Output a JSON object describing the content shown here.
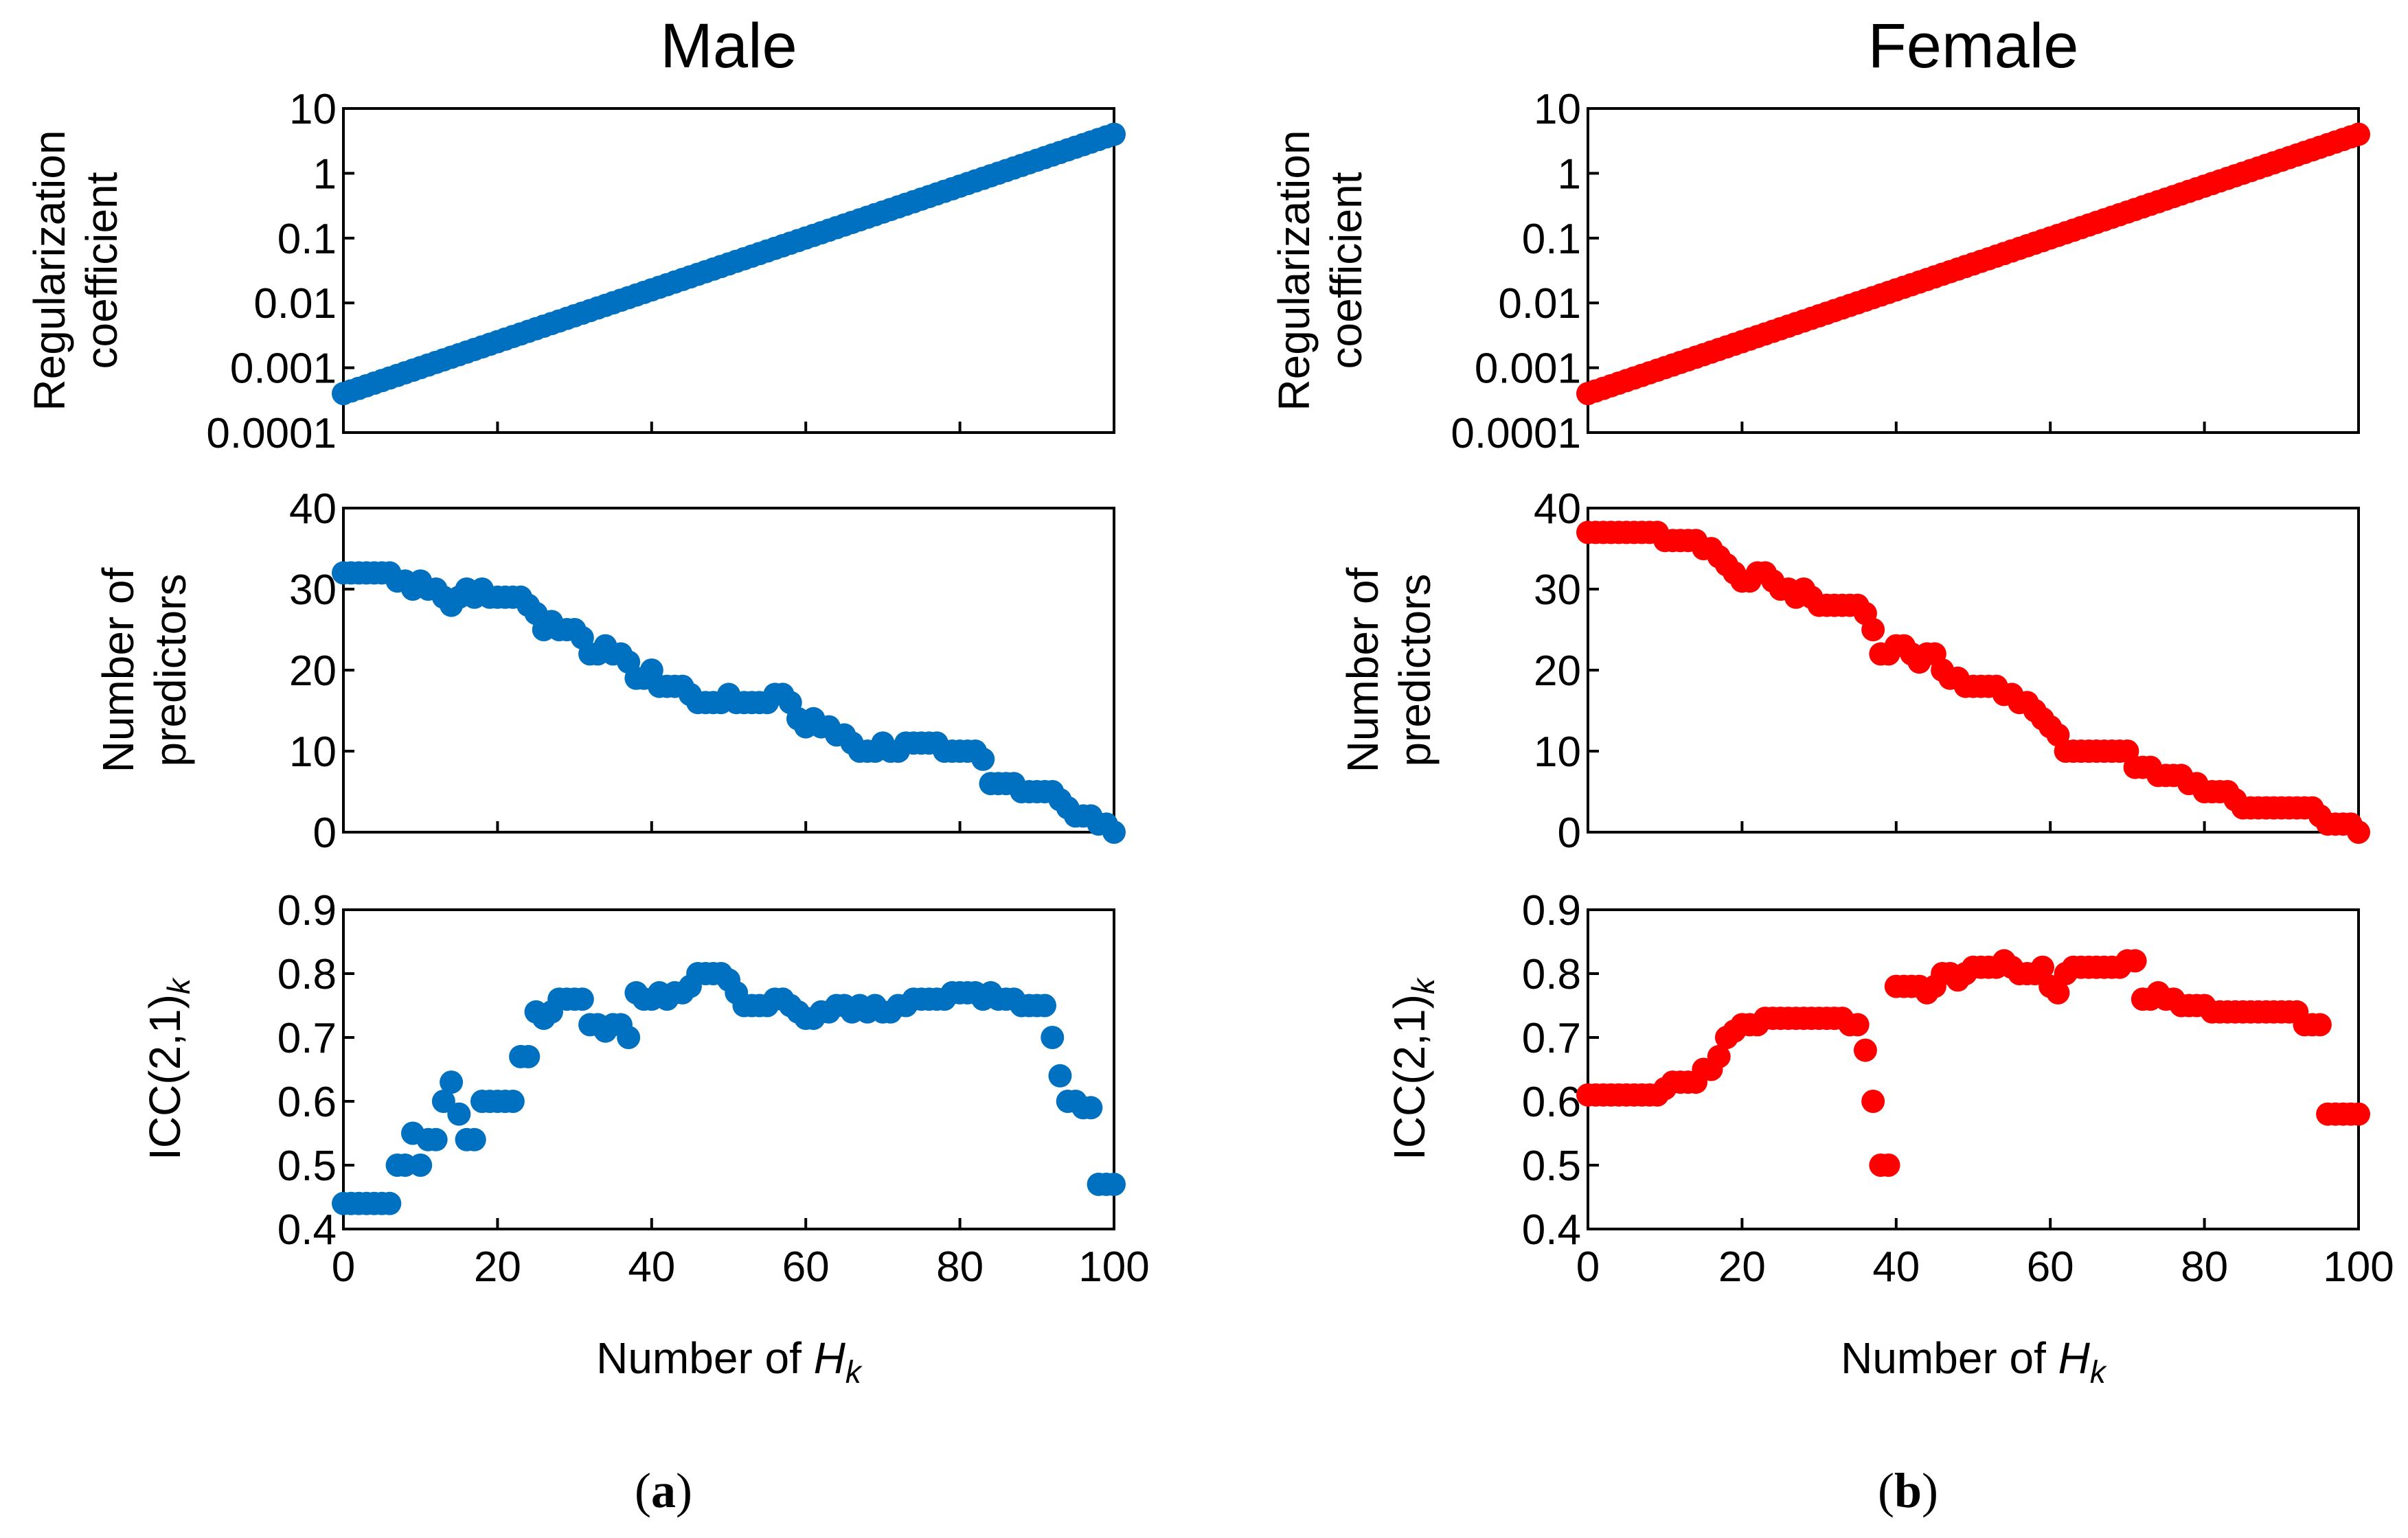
{
  "panels": [
    {
      "id": "a",
      "title": "Male",
      "caption_letter": "a",
      "color": "#0070C0"
    },
    {
      "id": "b",
      "title": "Female",
      "caption_letter": "b",
      "color": "#FF0000"
    }
  ],
  "axis_labels": {
    "reg_line1": "Regularization",
    "reg_line2": "coefficient",
    "pred_line1": "Number of",
    "pred_line2": "predictors",
    "icc_main": "ICC(2,1)",
    "icc_sub": "k",
    "x_main": "Number of ",
    "x_var": "H",
    "x_sub": "k"
  },
  "chart_data": [
    {
      "type": "scatter",
      "panel": "a",
      "row": "regularization",
      "title": "Male",
      "ylabel": "Regularization coefficient",
      "yscale": "log",
      "ylim": [
        0.0001,
        10
      ],
      "xlim": [
        0,
        100
      ],
      "yticks": [
        "10",
        "1",
        "0.1",
        "0.01",
        "0.001",
        "0.0001"
      ],
      "xticks": [
        "0",
        "20",
        "40",
        "60",
        "80",
        "100"
      ],
      "x": [
        0,
        100
      ],
      "y_start": 0.0004,
      "y_end": 4,
      "note": "101 points evenly spaced on a log scale from 0.0004 to 4"
    },
    {
      "type": "scatter",
      "panel": "a",
      "row": "predictors",
      "ylabel": "Number of predictors",
      "ylim": [
        0,
        40
      ],
      "xlim": [
        0,
        100
      ],
      "yticks": [
        "40",
        "30",
        "20",
        "10",
        "0"
      ],
      "xticks": [
        "0",
        "20",
        "40",
        "60",
        "80",
        "100"
      ],
      "y": [
        32,
        32,
        32,
        32,
        32,
        32,
        32,
        31,
        31,
        30,
        31,
        30,
        30,
        29,
        28,
        29,
        30,
        29,
        30,
        29,
        29,
        29,
        29,
        29,
        28,
        27,
        25,
        26,
        25,
        25,
        25,
        24,
        22,
        22,
        23,
        22,
        22,
        21,
        19,
        19,
        20,
        18,
        18,
        18,
        18,
        17,
        16,
        16,
        16,
        16,
        17,
        16,
        16,
        16,
        16,
        16,
        17,
        17,
        16,
        14,
        13,
        14,
        13,
        13,
        12,
        12,
        11,
        10,
        10,
        10,
        11,
        10,
        10,
        11,
        11,
        11,
        11,
        11,
        10,
        10,
        10,
        10,
        10,
        9,
        6,
        6,
        6,
        6,
        5,
        5,
        5,
        5,
        5,
        4,
        3,
        2,
        2,
        2,
        1,
        1,
        0
      ]
    },
    {
      "type": "scatter",
      "panel": "a",
      "row": "icc",
      "ylabel": "ICC(2,1)k",
      "ylim": [
        0.4,
        0.9
      ],
      "xlim": [
        0,
        100
      ],
      "yticks": [
        "0.9",
        "0.8",
        "0.7",
        "0.6",
        "0.5",
        "0.4"
      ],
      "xticks": [
        "0",
        "20",
        "40",
        "60",
        "80",
        "100"
      ],
      "xlabel": "Number of Hk",
      "y": [
        0.44,
        0.44,
        0.44,
        0.44,
        0.44,
        0.44,
        0.44,
        0.5,
        0.5,
        0.55,
        0.5,
        0.54,
        0.54,
        0.6,
        0.63,
        0.58,
        0.54,
        0.54,
        0.6,
        0.6,
        0.6,
        0.6,
        0.6,
        0.67,
        0.67,
        0.74,
        0.73,
        0.74,
        0.76,
        0.76,
        0.76,
        0.76,
        0.72,
        0.72,
        0.71,
        0.72,
        0.72,
        0.7,
        0.77,
        0.76,
        0.76,
        0.77,
        0.76,
        0.77,
        0.77,
        0.78,
        0.8,
        0.8,
        0.8,
        0.8,
        0.79,
        0.77,
        0.75,
        0.75,
        0.75,
        0.75,
        0.76,
        0.76,
        0.75,
        0.74,
        0.73,
        0.73,
        0.74,
        0.74,
        0.75,
        0.75,
        0.74,
        0.75,
        0.74,
        0.75,
        0.74,
        0.74,
        0.75,
        0.75,
        0.76,
        0.76,
        0.76,
        0.76,
        0.76,
        0.77,
        0.77,
        0.77,
        0.77,
        0.76,
        0.77,
        0.76,
        0.76,
        0.76,
        0.75,
        0.75,
        0.75,
        0.75,
        0.7,
        0.64,
        0.6,
        0.6,
        0.59,
        0.59,
        0.47,
        0.47,
        0.47
      ]
    },
    {
      "type": "scatter",
      "panel": "b",
      "row": "regularization",
      "title": "Female",
      "ylabel": "Regularization coefficient",
      "yscale": "log",
      "ylim": [
        0.0001,
        10
      ],
      "xlim": [
        0,
        100
      ],
      "yticks": [
        "10",
        "1",
        "0.1",
        "0.01",
        "0.001",
        "0.0001"
      ],
      "xticks": [
        "0",
        "20",
        "40",
        "60",
        "80",
        "100"
      ],
      "x": [
        0,
        100
      ],
      "y_start": 0.0004,
      "y_end": 4,
      "note": "101 points evenly spaced on a log scale from 0.0004 to 4"
    },
    {
      "type": "scatter",
      "panel": "b",
      "row": "predictors",
      "ylabel": "Number of predictors",
      "ylim": [
        0,
        40
      ],
      "xlim": [
        0,
        100
      ],
      "yticks": [
        "40",
        "30",
        "20",
        "10",
        "0"
      ],
      "xticks": [
        "0",
        "20",
        "40",
        "60",
        "80",
        "100"
      ],
      "y": [
        37,
        37,
        37,
        37,
        37,
        37,
        37,
        37,
        37,
        37,
        36,
        36,
        36,
        36,
        36,
        35,
        35,
        34,
        33,
        32,
        31,
        31,
        32,
        32,
        31,
        30,
        30,
        29,
        30,
        29,
        28,
        28,
        28,
        28,
        28,
        28,
        27,
        25,
        22,
        22,
        23,
        23,
        22,
        21,
        22,
        22,
        20,
        19,
        19,
        18,
        18,
        18,
        18,
        18,
        17,
        17,
        16,
        16,
        15,
        14,
        13,
        12,
        10,
        10,
        10,
        10,
        10,
        10,
        10,
        10,
        10,
        8,
        8,
        8,
        7,
        7,
        7,
        7,
        6,
        6,
        5,
        5,
        5,
        5,
        4,
        3,
        3,
        3,
        3,
        3,
        3,
        3,
        3,
        3,
        3,
        2,
        1,
        1,
        1,
        1,
        0
      ]
    },
    {
      "type": "scatter",
      "panel": "b",
      "row": "icc",
      "ylabel": "ICC(2,1)k",
      "ylim": [
        0.4,
        0.9
      ],
      "xlim": [
        0,
        100
      ],
      "yticks": [
        "0.9",
        "0.8",
        "0.7",
        "0.6",
        "0.5",
        "0.4"
      ],
      "xticks": [
        "0",
        "20",
        "40",
        "60",
        "80",
        "100"
      ],
      "xlabel": "Number of Hk",
      "y": [
        0.61,
        0.61,
        0.61,
        0.61,
        0.61,
        0.61,
        0.61,
        0.61,
        0.61,
        0.61,
        0.62,
        0.63,
        0.63,
        0.63,
        0.63,
        0.65,
        0.65,
        0.67,
        0.7,
        0.71,
        0.72,
        0.72,
        0.72,
        0.73,
        0.73,
        0.73,
        0.73,
        0.73,
        0.73,
        0.73,
        0.73,
        0.73,
        0.73,
        0.73,
        0.72,
        0.72,
        0.68,
        0.6,
        0.5,
        0.5,
        0.78,
        0.78,
        0.78,
        0.78,
        0.77,
        0.78,
        0.8,
        0.8,
        0.79,
        0.8,
        0.81,
        0.81,
        0.81,
        0.81,
        0.82,
        0.81,
        0.8,
        0.8,
        0.8,
        0.81,
        0.78,
        0.77,
        0.8,
        0.81,
        0.81,
        0.81,
        0.81,
        0.81,
        0.81,
        0.81,
        0.82,
        0.82,
        0.76,
        0.76,
        0.77,
        0.76,
        0.76,
        0.75,
        0.75,
        0.75,
        0.75,
        0.74,
        0.74,
        0.74,
        0.74,
        0.74,
        0.74,
        0.74,
        0.74,
        0.74,
        0.74,
        0.74,
        0.74,
        0.72,
        0.72,
        0.72,
        0.58,
        0.58,
        0.58,
        0.58,
        0.58
      ]
    }
  ]
}
